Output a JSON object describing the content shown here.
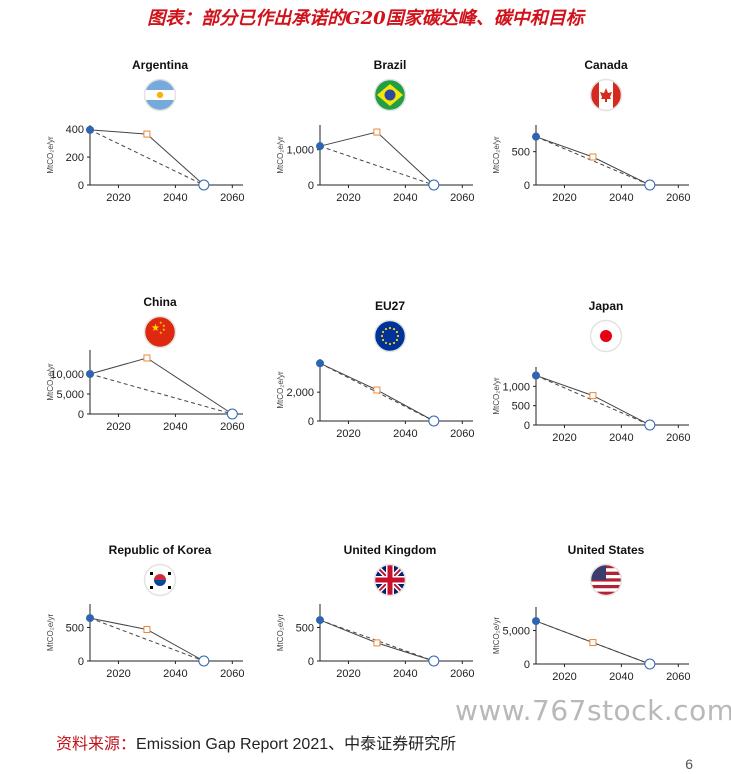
{
  "page": {
    "title": "图表：部分已作出承诺的G20国家碳达峰、碳中和目标",
    "source_label": "资料来源：",
    "source_text": "Emission Gap Report 2021、中泰证券研究所",
    "watermark": "www.767stock.com",
    "page_number": "6"
  },
  "colors": {
    "title_red": "#d0121b",
    "start_point": "#2f65b0",
    "peak_marker": "#e8883a",
    "end_point": "#2f65b0",
    "line": "#444444"
  },
  "chart_data": [
    {
      "type": "line",
      "title": "Argentina",
      "flag": "argentina-flag",
      "ylabel": "MtCO₂e/yr",
      "ylim": [
        0,
        430
      ],
      "yticks": [
        0,
        200,
        400
      ],
      "ytick_labels": [
        "0",
        "200",
        "400"
      ],
      "xlim": [
        2010,
        2062
      ],
      "xticks": [
        2020,
        2040,
        2060
      ],
      "series": [
        {
          "style": "solid",
          "x": [
            2010,
            2030,
            2050
          ],
          "y": [
            395,
            365,
            0
          ]
        },
        {
          "style": "dashed",
          "x": [
            2010,
            2050
          ],
          "y": [
            395,
            0
          ]
        }
      ]
    },
    {
      "type": "line",
      "title": "Brazil",
      "flag": "brazil-flag",
      "ylabel": "MtCO₂e/yr",
      "ylim": [
        0,
        1700
      ],
      "yticks": [
        0,
        1000
      ],
      "ytick_labels": [
        "0",
        "1,000"
      ],
      "xlim": [
        2010,
        2062
      ],
      "xticks": [
        2020,
        2040,
        2060
      ],
      "series": [
        {
          "style": "solid",
          "x": [
            2010,
            2030,
            2050
          ],
          "y": [
            1100,
            1500,
            0
          ]
        },
        {
          "style": "dashed",
          "x": [
            2010,
            2050
          ],
          "y": [
            1100,
            0
          ]
        }
      ]
    },
    {
      "type": "line",
      "title": "Canada",
      "flag": "canada-flag",
      "ylabel": "MtCO₂e/yr",
      "ylim": [
        0,
        900
      ],
      "yticks": [
        0,
        500
      ],
      "ytick_labels": [
        "0",
        "500"
      ],
      "xlim": [
        2010,
        2062
      ],
      "xticks": [
        2020,
        2040,
        2060
      ],
      "series": [
        {
          "style": "solid",
          "x": [
            2010,
            2030,
            2050
          ],
          "y": [
            725,
            420,
            0
          ]
        },
        {
          "style": "dashed",
          "x": [
            2010,
            2050
          ],
          "y": [
            725,
            0
          ]
        }
      ]
    },
    {
      "type": "line",
      "title": "China",
      "flag": "china-flag",
      "ylabel": "MtCO₂e/yr",
      "ylim": [
        0,
        16000
      ],
      "yticks": [
        0,
        5000,
        10000
      ],
      "ytick_labels": [
        "0",
        "5,000",
        "10,000"
      ],
      "xlim": [
        2010,
        2062
      ],
      "xticks": [
        2020,
        2040,
        2060
      ],
      "series": [
        {
          "style": "solid",
          "x": [
            2010,
            2030,
            2060
          ],
          "y": [
            10000,
            14000,
            0
          ]
        },
        {
          "style": "dashed",
          "x": [
            2010,
            2060
          ],
          "y": [
            10000,
            0
          ]
        }
      ]
    },
    {
      "type": "line",
      "title": "EU27",
      "flag": "eu-flag",
      "ylabel": "MtCO₂e/yr",
      "ylim": [
        0,
        4300
      ],
      "yticks": [
        0,
        2000
      ],
      "ytick_labels": [
        "0",
        "2,000"
      ],
      "xlim": [
        2010,
        2062
      ],
      "xticks": [
        2020,
        2040,
        2060
      ],
      "series": [
        {
          "style": "solid",
          "x": [
            2010,
            2030,
            2050
          ],
          "y": [
            4000,
            2150,
            0
          ]
        },
        {
          "style": "dashed",
          "x": [
            2010,
            2050
          ],
          "y": [
            4000,
            0
          ]
        }
      ]
    },
    {
      "type": "line",
      "title": "Japan",
      "flag": "japan-flag",
      "ylabel": "MtCO₂e/yr",
      "ylim": [
        0,
        1500
      ],
      "yticks": [
        0,
        500,
        1000
      ],
      "ytick_labels": [
        "0",
        "500",
        "1,000"
      ],
      "xlim": [
        2010,
        2062
      ],
      "xticks": [
        2020,
        2040,
        2060
      ],
      "series": [
        {
          "style": "solid",
          "x": [
            2010,
            2030,
            2050
          ],
          "y": [
            1280,
            760,
            0
          ]
        },
        {
          "style": "dashed",
          "x": [
            2010,
            2050
          ],
          "y": [
            1280,
            0
          ]
        }
      ]
    },
    {
      "type": "line",
      "title": "Republic of Korea",
      "flag": "korea-flag",
      "ylabel": "MtCO₂e/yr",
      "ylim": [
        0,
        850
      ],
      "yticks": [
        0,
        500
      ],
      "ytick_labels": [
        "0",
        "500"
      ],
      "xlim": [
        2010,
        2062
      ],
      "xticks": [
        2020,
        2040,
        2060
      ],
      "series": [
        {
          "style": "solid",
          "x": [
            2010,
            2030,
            2050
          ],
          "y": [
            640,
            470,
            0
          ]
        },
        {
          "style": "dashed",
          "x": [
            2010,
            2050
          ],
          "y": [
            640,
            0
          ]
        }
      ]
    },
    {
      "type": "line",
      "title": "United Kingdom",
      "flag": "uk-flag",
      "ylabel": "MtCO₂e/yr",
      "ylim": [
        0,
        850
      ],
      "yticks": [
        0,
        500
      ],
      "ytick_labels": [
        "0",
        "500"
      ],
      "xlim": [
        2010,
        2062
      ],
      "xticks": [
        2020,
        2040,
        2060
      ],
      "series": [
        {
          "style": "solid",
          "x": [
            2010,
            2030,
            2050
          ],
          "y": [
            610,
            270,
            0
          ]
        },
        {
          "style": "dashed",
          "x": [
            2010,
            2050
          ],
          "y": [
            610,
            0
          ]
        }
      ]
    },
    {
      "type": "line",
      "title": "United States",
      "flag": "us-flag",
      "ylabel": "MtCO₂e/yr",
      "ylim": [
        0,
        8500
      ],
      "yticks": [
        0,
        5000
      ],
      "ytick_labels": [
        "0",
        "5,000"
      ],
      "xlim": [
        2010,
        2062
      ],
      "xticks": [
        2020,
        2040,
        2060
      ],
      "series": [
        {
          "style": "solid",
          "x": [
            2010,
            2030,
            2050
          ],
          "y": [
            6400,
            3200,
            0
          ]
        },
        {
          "style": "dashed",
          "x": [
            2010,
            2050
          ],
          "y": [
            6400,
            0
          ]
        }
      ]
    }
  ]
}
